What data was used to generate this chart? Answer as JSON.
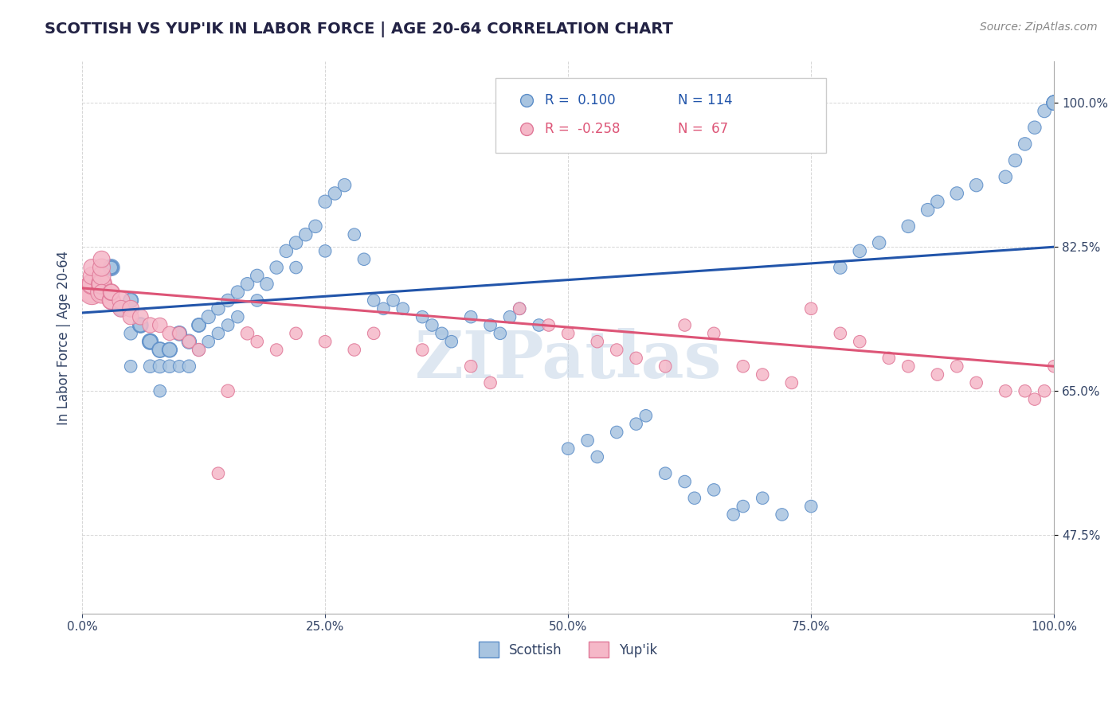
{
  "title": "SCOTTISH VS YUP'IK IN LABOR FORCE | AGE 20-64 CORRELATION CHART",
  "source_text": "Source: ZipAtlas.com",
  "ylabel": "In Labor Force | Age 20-64",
  "xlim": [
    0.0,
    1.0
  ],
  "ylim": [
    0.38,
    1.05
  ],
  "ytick_labels_right": [
    0.475,
    0.65,
    0.825,
    1.0
  ],
  "xtick_labels": [
    0.0,
    0.25,
    0.5,
    0.75,
    1.0
  ],
  "background_color": "#ffffff",
  "grid_color": "#cccccc",
  "scottish_color": "#a8c4e0",
  "scottish_edge_color": "#5b8dc8",
  "yupik_color": "#f5b8c8",
  "yupik_edge_color": "#e07898",
  "blue_line_color": "#2255aa",
  "pink_line_color": "#dd5577",
  "legend_R_scottish": "0.100",
  "legend_N_scottish": "114",
  "legend_R_yupik": "-0.258",
  "legend_N_yupik": "67",
  "watermark": "ZIPatlas",
  "watermark_color": "#c8d8e8",
  "scottish_x": [
    0.02,
    0.02,
    0.02,
    0.02,
    0.02,
    0.03,
    0.03,
    0.03,
    0.03,
    0.04,
    0.04,
    0.04,
    0.05,
    0.05,
    0.05,
    0.05,
    0.06,
    0.06,
    0.06,
    0.07,
    0.07,
    0.07,
    0.07,
    0.08,
    0.08,
    0.08,
    0.08,
    0.09,
    0.09,
    0.09,
    0.1,
    0.1,
    0.1,
    0.11,
    0.11,
    0.12,
    0.12,
    0.12,
    0.13,
    0.13,
    0.14,
    0.14,
    0.15,
    0.15,
    0.16,
    0.16,
    0.17,
    0.18,
    0.18,
    0.19,
    0.2,
    0.21,
    0.22,
    0.22,
    0.23,
    0.24,
    0.25,
    0.25,
    0.26,
    0.27,
    0.28,
    0.29,
    0.3,
    0.31,
    0.32,
    0.33,
    0.35,
    0.36,
    0.37,
    0.38,
    0.4,
    0.42,
    0.43,
    0.44,
    0.45,
    0.47,
    0.5,
    0.52,
    0.53,
    0.55,
    0.57,
    0.58,
    0.6,
    0.62,
    0.63,
    0.65,
    0.67,
    0.68,
    0.7,
    0.72,
    0.75,
    0.78,
    0.8,
    0.82,
    0.85,
    0.87,
    0.88,
    0.9,
    0.92,
    0.95,
    0.96,
    0.97,
    0.98,
    0.99,
    1.0,
    1.0,
    1.0,
    1.0,
    1.0,
    1.0,
    1.0,
    1.0,
    1.0,
    1.0
  ],
  "scottish_y": [
    0.77,
    0.77,
    0.77,
    0.77,
    0.77,
    0.8,
    0.8,
    0.8,
    0.8,
    0.75,
    0.75,
    0.75,
    0.76,
    0.76,
    0.72,
    0.68,
    0.73,
    0.73,
    0.73,
    0.71,
    0.71,
    0.71,
    0.68,
    0.7,
    0.7,
    0.68,
    0.65,
    0.7,
    0.7,
    0.68,
    0.72,
    0.72,
    0.68,
    0.71,
    0.68,
    0.73,
    0.73,
    0.7,
    0.74,
    0.71,
    0.75,
    0.72,
    0.76,
    0.73,
    0.77,
    0.74,
    0.78,
    0.79,
    0.76,
    0.78,
    0.8,
    0.82,
    0.83,
    0.8,
    0.84,
    0.85,
    0.88,
    0.82,
    0.89,
    0.9,
    0.84,
    0.81,
    0.76,
    0.75,
    0.76,
    0.75,
    0.74,
    0.73,
    0.72,
    0.71,
    0.74,
    0.73,
    0.72,
    0.74,
    0.75,
    0.73,
    0.58,
    0.59,
    0.57,
    0.6,
    0.61,
    0.62,
    0.55,
    0.54,
    0.52,
    0.53,
    0.5,
    0.51,
    0.52,
    0.5,
    0.51,
    0.8,
    0.82,
    0.83,
    0.85,
    0.87,
    0.88,
    0.89,
    0.9,
    0.91,
    0.93,
    0.95,
    0.97,
    0.99,
    1.0,
    1.0,
    1.0,
    1.0,
    1.0,
    1.0,
    1.0,
    1.0,
    1.0,
    1.0
  ],
  "scottish_size": [
    30,
    35,
    40,
    30,
    25,
    45,
    35,
    30,
    25,
    40,
    35,
    30,
    38,
    32,
    28,
    25,
    40,
    35,
    30,
    42,
    38,
    32,
    28,
    40,
    35,
    30,
    25,
    38,
    32,
    28,
    36,
    30,
    25,
    35,
    28,
    33,
    28,
    25,
    30,
    25,
    28,
    25,
    28,
    25,
    28,
    25,
    28,
    28,
    25,
    28,
    28,
    28,
    28,
    25,
    28,
    28,
    28,
    25,
    28,
    28,
    25,
    25,
    25,
    25,
    25,
    25,
    25,
    25,
    25,
    25,
    25,
    25,
    25,
    25,
    25,
    25,
    25,
    25,
    25,
    25,
    25,
    25,
    25,
    25,
    25,
    25,
    25,
    25,
    25,
    25,
    25,
    28,
    28,
    28,
    28,
    28,
    28,
    28,
    28,
    28,
    28,
    28,
    28,
    28,
    35,
    35,
    35,
    35,
    35,
    35
  ],
  "yupik_x": [
    0.01,
    0.01,
    0.01,
    0.01,
    0.01,
    0.01,
    0.01,
    0.02,
    0.02,
    0.02,
    0.02,
    0.02,
    0.02,
    0.02,
    0.02,
    0.03,
    0.03,
    0.03,
    0.03,
    0.04,
    0.04,
    0.05,
    0.05,
    0.06,
    0.07,
    0.08,
    0.09,
    0.1,
    0.11,
    0.12,
    0.14,
    0.15,
    0.17,
    0.18,
    0.2,
    0.22,
    0.25,
    0.28,
    0.3,
    0.35,
    0.4,
    0.42,
    0.45,
    0.48,
    0.5,
    0.53,
    0.55,
    0.57,
    0.6,
    0.62,
    0.65,
    0.68,
    0.7,
    0.73,
    0.75,
    0.78,
    0.8,
    0.83,
    0.85,
    0.88,
    0.9,
    0.92,
    0.95,
    0.97,
    0.98,
    0.99,
    1.0
  ],
  "yupik_y": [
    0.77,
    0.77,
    0.77,
    0.78,
    0.78,
    0.79,
    0.8,
    0.77,
    0.77,
    0.78,
    0.78,
    0.79,
    0.8,
    0.81,
    0.77,
    0.76,
    0.76,
    0.77,
    0.77,
    0.76,
    0.75,
    0.75,
    0.74,
    0.74,
    0.73,
    0.73,
    0.72,
    0.72,
    0.71,
    0.7,
    0.55,
    0.65,
    0.72,
    0.71,
    0.7,
    0.72,
    0.71,
    0.7,
    0.72,
    0.7,
    0.68,
    0.66,
    0.75,
    0.73,
    0.72,
    0.71,
    0.7,
    0.69,
    0.68,
    0.73,
    0.72,
    0.68,
    0.67,
    0.66,
    0.75,
    0.72,
    0.71,
    0.69,
    0.68,
    0.67,
    0.68,
    0.66,
    0.65,
    0.65,
    0.64,
    0.65,
    0.68
  ],
  "yupik_size": [
    60,
    80,
    100,
    70,
    60,
    50,
    45,
    60,
    80,
    70,
    60,
    55,
    50,
    45,
    40,
    55,
    50,
    45,
    40,
    50,
    45,
    45,
    40,
    40,
    38,
    35,
    32,
    30,
    28,
    28,
    25,
    28,
    28,
    25,
    25,
    25,
    25,
    25,
    25,
    25,
    25,
    25,
    25,
    25,
    25,
    25,
    25,
    25,
    25,
    25,
    25,
    25,
    25,
    25,
    25,
    25,
    25,
    25,
    25,
    25,
    25,
    25,
    25,
    25,
    25,
    25,
    25
  ],
  "blue_line_x": [
    0.0,
    1.0
  ],
  "blue_line_y": [
    0.745,
    0.825
  ],
  "pink_line_x": [
    0.0,
    1.0
  ],
  "pink_line_y": [
    0.775,
    0.68
  ]
}
